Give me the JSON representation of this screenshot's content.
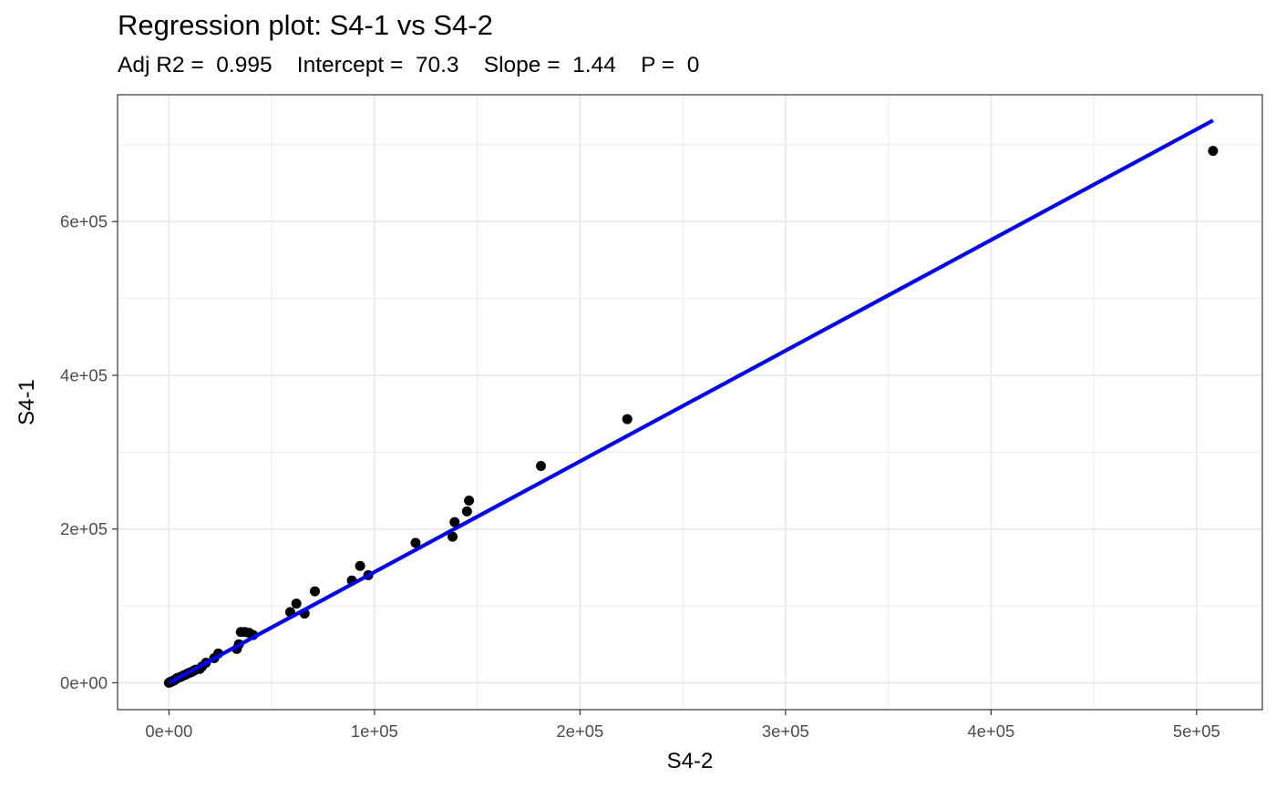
{
  "chart_data": {
    "type": "scatter",
    "title": "Regression plot: S4-1 vs S4-2",
    "subtitle": "Adj R2 =  0.995    Intercept =  70.3    Slope =  1.44    P =  0",
    "stats": {
      "adj_r2": 0.995,
      "intercept": 70.3,
      "slope": 1.44,
      "p": 0
    },
    "xlabel": "S4-2",
    "ylabel": "S4-1",
    "xlim": [
      -25000,
      532000
    ],
    "ylim": [
      -35000,
      765000
    ],
    "x_ticks": [
      0,
      100000,
      200000,
      300000,
      400000,
      500000
    ],
    "x_tick_labels": [
      "0e+00",
      "1e+05",
      "2e+05",
      "3e+05",
      "4e+05",
      "5e+05"
    ],
    "y_ticks": [
      0,
      200000,
      400000,
      600000
    ],
    "y_tick_labels": [
      "0e+00",
      "2e+05",
      "4e+05",
      "6e+05"
    ],
    "grid": true,
    "point_color": "#000000",
    "line_color": "#0000ff",
    "regression_line": {
      "x": [
        0,
        508000
      ],
      "y": [
        70.3,
        731590
      ]
    },
    "series": [
      {
        "points": [
          [
            0,
            0
          ],
          [
            300,
            500
          ],
          [
            600,
            800
          ],
          [
            900,
            1200
          ],
          [
            1200,
            1500
          ],
          [
            1500,
            2000
          ],
          [
            2000,
            2500
          ],
          [
            2500,
            3000
          ],
          [
            3000,
            4000
          ],
          [
            3500,
            5000
          ],
          [
            4000,
            6000
          ],
          [
            5000,
            7000
          ],
          [
            6000,
            8000
          ],
          [
            7000,
            9500
          ],
          [
            8000,
            10500
          ],
          [
            9000,
            12000
          ],
          [
            10000,
            13000
          ],
          [
            11000,
            14000
          ],
          [
            12000,
            15500
          ],
          [
            13000,
            17000
          ],
          [
            15000,
            18000
          ],
          [
            16000,
            21000
          ],
          [
            18000,
            26000
          ],
          [
            22000,
            32000
          ],
          [
            24000,
            38000
          ],
          [
            33000,
            44000
          ],
          [
            34000,
            50000
          ],
          [
            35000,
            66000
          ],
          [
            37000,
            66000
          ],
          [
            39000,
            65000
          ],
          [
            41000,
            62000
          ],
          [
            59000,
            92000
          ],
          [
            62000,
            103000
          ],
          [
            66000,
            90000
          ],
          [
            71000,
            119000
          ],
          [
            89000,
            133000
          ],
          [
            93000,
            152000
          ],
          [
            97000,
            140000
          ],
          [
            120000,
            182000
          ],
          [
            138000,
            190000
          ],
          [
            139000,
            209000
          ],
          [
            145000,
            223000
          ],
          [
            146000,
            237000
          ],
          [
            181000,
            282000
          ],
          [
            223000,
            343000
          ],
          [
            508000,
            692000
          ]
        ]
      }
    ]
  }
}
